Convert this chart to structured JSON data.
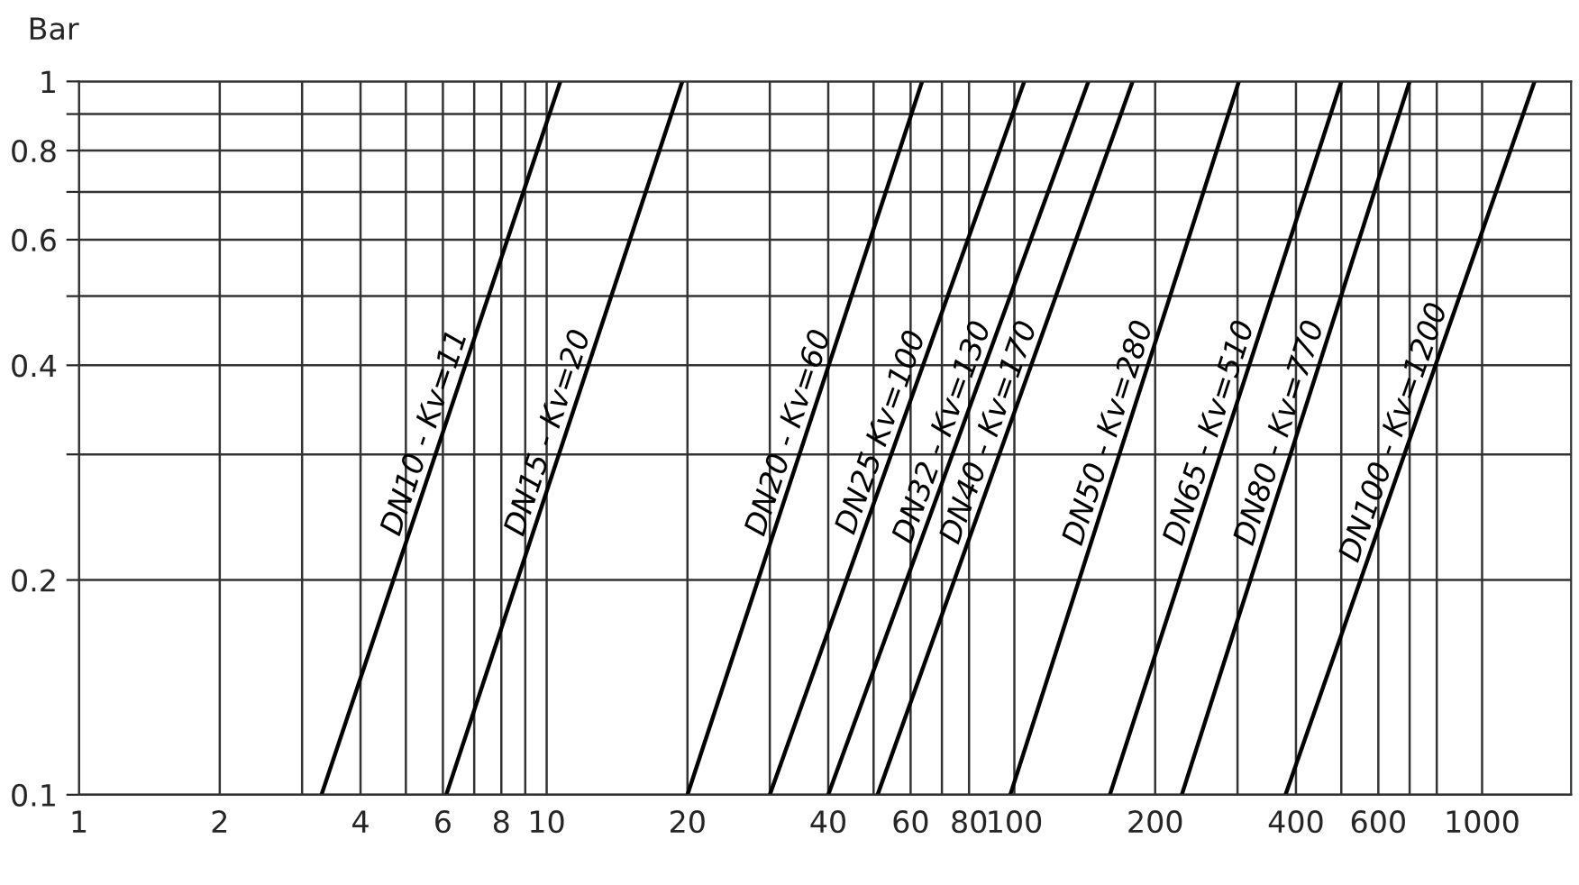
{
  "chart_data": {
    "type": "line",
    "ylabel": "Bar",
    "log": "xy",
    "grid": true,
    "legend": false,
    "marker": "none",
    "line_style": "solid",
    "xlim": [
      1,
      1550
    ],
    "ylim": [
      0.1,
      1
    ],
    "xticks": [
      1,
      2,
      {
        "value": 3,
        "label": null
      },
      4,
      {
        "value": 5,
        "label": null
      },
      6,
      {
        "value": 7,
        "label": null
      },
      8,
      {
        "value": 9,
        "label": null
      },
      10,
      20,
      {
        "value": 30,
        "label": null
      },
      40,
      {
        "value": 50,
        "label": null
      },
      60,
      {
        "value": 70,
        "label": null
      },
      80,
      100,
      200,
      {
        "value": 300,
        "label": null
      },
      400,
      {
        "value": 500,
        "label": null
      },
      600,
      {
        "value": 700,
        "label": null
      },
      {
        "value": 800,
        "label": null
      },
      1000
    ],
    "yticks": [
      0.1,
      0.2,
      {
        "value": 0.3,
        "label": null
      },
      0.4,
      {
        "value": 0.5,
        "label": null
      },
      0.6,
      {
        "value": 0.7,
        "label": null
      },
      0.8,
      {
        "value": 0.9,
        "label": null
      },
      1
    ],
    "series": [
      {
        "name": "DN10 - Kv=11",
        "color": "#000000",
        "x": [
          3.3,
          10.7
        ],
        "values": [
          0.1,
          1
        ]
      },
      {
        "name": "DN15 - Kv=20",
        "color": "#000000",
        "x": [
          6.1,
          19.5
        ],
        "values": [
          0.1,
          1
        ]
      },
      {
        "name": "DN20 - Kv=60",
        "color": "#000000",
        "x": [
          20,
          63.5
        ],
        "values": [
          0.1,
          1
        ]
      },
      {
        "name": "DN25 Kv=100",
        "color": "#000000",
        "x": [
          30,
          105
        ],
        "values": [
          0.1,
          1
        ]
      },
      {
        "name": "DN32 - Kv=130",
        "color": "#000000",
        "x": [
          40,
          144
        ],
        "values": [
          0.1,
          1
        ]
      },
      {
        "name": "DN40 - Kv=170",
        "color": "#000000",
        "x": [
          51,
          179
        ],
        "values": [
          0.1,
          1
        ]
      },
      {
        "name": "DN50 - Kv=280",
        "color": "#000000",
        "x": [
          98,
          302
        ],
        "values": [
          0.1,
          1
        ]
      },
      {
        "name": "DN65 - Kv=510",
        "color": "#000000",
        "x": [
          160,
          500
        ],
        "values": [
          0.1,
          1
        ]
      },
      {
        "name": "DN80 - Kv=770",
        "color": "#000000",
        "x": [
          228,
          700
        ],
        "values": [
          0.1,
          1
        ]
      },
      {
        "name": "DN100 - Kv=1200",
        "color": "#000000",
        "x": [
          380,
          1295
        ],
        "values": [
          0.1,
          1
        ]
      }
    ]
  }
}
